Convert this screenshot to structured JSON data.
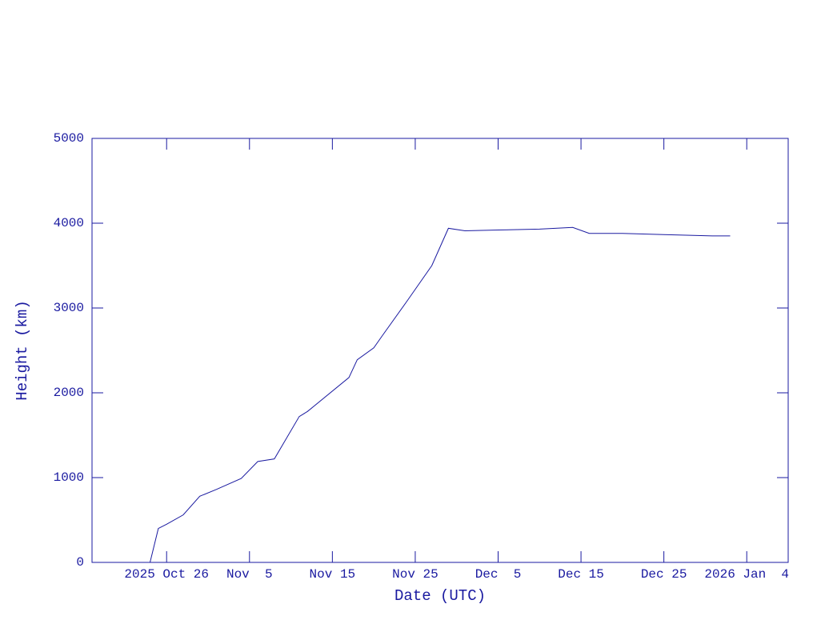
{
  "chart_data": {
    "type": "line",
    "x_label": "Date (UTC)",
    "y_label": "Height (km)",
    "color": "#1a1aa0",
    "x": [
      "2025-10-24",
      "2025-10-25",
      "2025-10-26",
      "2025-10-28",
      "2025-10-30",
      "2025-11-01",
      "2025-11-04",
      "2025-11-06",
      "2025-11-08",
      "2025-11-11",
      "2025-11-12",
      "2025-11-17",
      "2025-11-18",
      "2025-11-20",
      "2025-11-21",
      "2025-11-24",
      "2025-11-27",
      "2025-11-29",
      "2025-12-01",
      "2025-12-05",
      "2025-12-10",
      "2025-12-14",
      "2025-12-16",
      "2025-12-20",
      "2025-12-25",
      "2025-12-31",
      "2026-01-02"
    ],
    "values": [
      0,
      400,
      450,
      560,
      780,
      860,
      990,
      1190,
      1220,
      1720,
      1780,
      2180,
      2390,
      2530,
      2670,
      3080,
      3500,
      3940,
      3910,
      3920,
      3930,
      3950,
      3880,
      3880,
      3865,
      3850,
      3850
    ],
    "xlim": [
      "2025-10-17",
      "2026-01-09"
    ],
    "xticks": [
      {
        "value": "2025-10-26",
        "label": "2025 Oct 26"
      },
      {
        "value": "2025-11-05",
        "label": "Nov  5"
      },
      {
        "value": "2025-11-15",
        "label": "Nov 15"
      },
      {
        "value": "2025-11-25",
        "label": "Nov 25"
      },
      {
        "value": "2025-12-05",
        "label": "Dec  5"
      },
      {
        "value": "2025-12-15",
        "label": "Dec 15"
      },
      {
        "value": "2025-12-25",
        "label": "Dec 25"
      },
      {
        "value": "2026-01-04",
        "label": "2026 Jan  4"
      }
    ],
    "ylim": [
      0,
      5000
    ],
    "yticks": [
      0,
      1000,
      2000,
      3000,
      4000,
      5000
    ]
  }
}
